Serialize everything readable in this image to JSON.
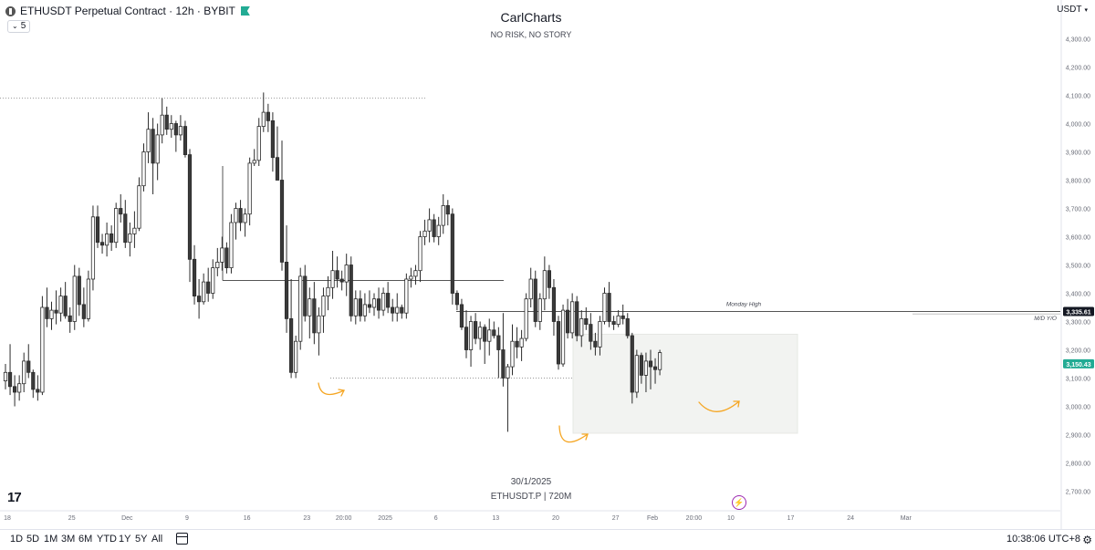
{
  "header": {
    "symbol_title": "ETHUSDT Perpetual Contract · 12h · BYBIT",
    "indicator_count": "5",
    "currency": "USDT"
  },
  "watermark": {
    "brand": "CarlCharts",
    "tagline": "NO RISK, NO STORY",
    "date": "30/1/2025",
    "symbol_line": "ETHUSDT.P  |  720M"
  },
  "bottom_bar": {
    "timeframes": [
      "1D",
      "5D",
      "1M",
      "3M",
      "6M",
      "YTD",
      "1Y",
      "5Y",
      "All"
    ],
    "clock": "10:38:06 UTC+8"
  },
  "colors": {
    "candle": "#2b2b2b",
    "bull_fill": "#ffffff",
    "bear_fill": "#3a3a3a",
    "level_line": "#555555",
    "zone_fill": "#f2f3f1",
    "arrow": "#f5a623",
    "price_badge": "#22ab94",
    "level_badge": "#131722"
  },
  "chart_data": {
    "type": "candlestick",
    "timeframe": "12h",
    "y_axis": {
      "range": [
        2650,
        4400
      ],
      "tick_labels": [
        "4,300.00",
        "4,200.00",
        "4,100.00",
        "4,000.00",
        "3,900.00",
        "3,800.00",
        "3,700.00",
        "3,600.00",
        "3,500.00",
        "3,400.00",
        "3,300.00",
        "3,200.00",
        "3,100.00",
        "3,000.00",
        "2,900.00",
        "2,800.00",
        "2,700.00"
      ],
      "tick_values": [
        4300,
        4200,
        4100,
        4000,
        3900,
        3800,
        3700,
        3600,
        3500,
        3400,
        3300,
        3200,
        3100,
        3000,
        2900,
        2800,
        2700
      ]
    },
    "x_axis": {
      "tick_labels": [
        "18",
        "25",
        "Dec",
        "9",
        "16",
        "23",
        "20:00",
        "2025",
        "6",
        "13",
        "20",
        "27",
        "Feb",
        "20:00",
        "10",
        "17",
        "24",
        "Mar"
      ],
      "tick_bar_index": [
        0,
        14,
        26,
        39,
        52,
        65,
        73,
        82,
        93,
        106,
        119,
        132,
        140,
        149,
        157,
        170,
        183,
        195
      ]
    },
    "candles": [
      [
        3090,
        3150,
        3060,
        3120
      ],
      [
        3120,
        3220,
        3040,
        3070
      ],
      [
        3070,
        3110,
        3000,
        3050
      ],
      [
        3050,
        3110,
        3020,
        3080
      ],
      [
        3080,
        3190,
        3050,
        3160
      ],
      [
        3160,
        3220,
        3100,
        3120
      ],
      [
        3120,
        3130,
        3030,
        3060
      ],
      [
        3060,
        3110,
        3020,
        3050
      ],
      [
        3050,
        3390,
        3040,
        3350
      ],
      [
        3350,
        3420,
        3280,
        3310
      ],
      [
        3310,
        3370,
        3270,
        3340
      ],
      [
        3340,
        3410,
        3290,
        3330
      ],
      [
        3330,
        3420,
        3300,
        3390
      ],
      [
        3390,
        3440,
        3310,
        3320
      ],
      [
        3320,
        3350,
        3260,
        3300
      ],
      [
        3300,
        3500,
        3270,
        3460
      ],
      [
        3460,
        3490,
        3320,
        3360
      ],
      [
        3360,
        3420,
        3280,
        3310
      ],
      [
        3310,
        3480,
        3300,
        3450
      ],
      [
        3450,
        3710,
        3410,
        3670
      ],
      [
        3670,
        3710,
        3560,
        3580
      ],
      [
        3580,
        3610,
        3540,
        3570
      ],
      [
        3570,
        3650,
        3530,
        3610
      ],
      [
        3610,
        3640,
        3550,
        3580
      ],
      [
        3580,
        3720,
        3560,
        3700
      ],
      [
        3700,
        3750,
        3650,
        3680
      ],
      [
        3680,
        3730,
        3560,
        3580
      ],
      [
        3580,
        3650,
        3530,
        3610
      ],
      [
        3610,
        3690,
        3560,
        3630
      ],
      [
        3630,
        3810,
        3620,
        3780
      ],
      [
        3780,
        3930,
        3760,
        3900
      ],
      [
        3900,
        4040,
        3860,
        3980
      ],
      [
        3980,
        4020,
        3750,
        3860
      ],
      [
        3860,
        4000,
        3800,
        3960
      ],
      [
        3960,
        4090,
        3930,
        4030
      ],
      [
        4030,
        4060,
        3960,
        3980
      ],
      [
        3980,
        4030,
        3950,
        4000
      ],
      [
        4000,
        4010,
        3900,
        3960
      ],
      [
        3960,
        4030,
        3940,
        3990
      ],
      [
        3990,
        4010,
        3880,
        3890
      ],
      [
        3890,
        3910,
        3440,
        3520
      ],
      [
        3520,
        3570,
        3360,
        3390
      ],
      [
        3390,
        3450,
        3310,
        3370
      ],
      [
        3370,
        3470,
        3360,
        3440
      ],
      [
        3440,
        3490,
        3370,
        3400
      ],
      [
        3400,
        3520,
        3380,
        3490
      ],
      [
        3490,
        3560,
        3460,
        3510
      ],
      [
        3510,
        3600,
        3480,
        3560
      ],
      [
        3560,
        3580,
        3470,
        3490
      ],
      [
        3490,
        3680,
        3470,
        3650
      ],
      [
        3650,
        3720,
        3590,
        3700
      ],
      [
        3700,
        3730,
        3620,
        3650
      ],
      [
        3650,
        3700,
        3600,
        3680
      ],
      [
        3680,
        3880,
        3640,
        3860
      ],
      [
        3860,
        3910,
        3850,
        3870
      ],
      [
        3870,
        4020,
        3850,
        3990
      ],
      [
        3990,
        4110,
        3970,
        4040
      ],
      [
        4040,
        4070,
        3970,
        4010
      ],
      [
        4010,
        4040,
        3830,
        3880
      ],
      [
        3880,
        3990,
        3800,
        3800
      ],
      [
        3800,
        3940,
        3480,
        3510
      ],
      [
        3510,
        3640,
        3260,
        3310
      ],
      [
        3310,
        3450,
        3100,
        3120
      ],
      [
        3120,
        3250,
        3100,
        3230
      ],
      [
        3230,
        3490,
        3200,
        3460
      ],
      [
        3460,
        3500,
        3300,
        3320
      ],
      [
        3320,
        3420,
        3240,
        3380
      ],
      [
        3380,
        3440,
        3220,
        3260
      ],
      [
        3260,
        3350,
        3180,
        3320
      ],
      [
        3320,
        3420,
        3260,
        3390
      ],
      [
        3390,
        3460,
        3340,
        3420
      ],
      [
        3420,
        3550,
        3380,
        3480
      ],
      [
        3480,
        3530,
        3420,
        3450
      ],
      [
        3450,
        3480,
        3410,
        3440
      ],
      [
        3440,
        3540,
        3390,
        3500
      ],
      [
        3500,
        3530,
        3300,
        3320
      ],
      [
        3320,
        3410,
        3290,
        3380
      ],
      [
        3380,
        3410,
        3300,
        3320
      ],
      [
        3320,
        3400,
        3300,
        3360
      ],
      [
        3360,
        3410,
        3330,
        3350
      ],
      [
        3350,
        3400,
        3320,
        3380
      ],
      [
        3380,
        3420,
        3310,
        3340
      ],
      [
        3340,
        3420,
        3320,
        3400
      ],
      [
        3400,
        3440,
        3330,
        3350
      ],
      [
        3350,
        3380,
        3300,
        3330
      ],
      [
        3330,
        3400,
        3300,
        3350
      ],
      [
        3350,
        3360,
        3310,
        3330
      ],
      [
        3330,
        3470,
        3310,
        3450
      ],
      [
        3450,
        3490,
        3420,
        3460
      ],
      [
        3460,
        3500,
        3430,
        3480
      ],
      [
        3480,
        3620,
        3440,
        3600
      ],
      [
        3600,
        3660,
        3570,
        3620
      ],
      [
        3620,
        3700,
        3580,
        3660
      ],
      [
        3660,
        3680,
        3580,
        3600
      ],
      [
        3600,
        3670,
        3570,
        3640
      ],
      [
        3640,
        3750,
        3610,
        3710
      ],
      [
        3710,
        3730,
        3640,
        3680
      ],
      [
        3680,
        3700,
        3360,
        3400
      ],
      [
        3400,
        3410,
        3340,
        3360
      ],
      [
        3360,
        3380,
        3270,
        3280
      ],
      [
        3280,
        3340,
        3170,
        3200
      ],
      [
        3200,
        3320,
        3140,
        3300
      ],
      [
        3300,
        3330,
        3220,
        3240
      ],
      [
        3240,
        3300,
        3200,
        3280
      ],
      [
        3280,
        3290,
        3150,
        3230
      ],
      [
        3230,
        3310,
        3180,
        3270
      ],
      [
        3270,
        3300,
        3240,
        3250
      ],
      [
        3250,
        3280,
        3100,
        3200
      ],
      [
        3200,
        3330,
        3070,
        3100
      ],
      [
        3100,
        3150,
        2910,
        3140
      ],
      [
        3140,
        3290,
        3110,
        3230
      ],
      [
        3230,
        3280,
        3170,
        3210
      ],
      [
        3210,
        3270,
        3160,
        3240
      ],
      [
        3240,
        3400,
        3230,
        3380
      ],
      [
        3380,
        3490,
        3350,
        3450
      ],
      [
        3450,
        3480,
        3280,
        3300
      ],
      [
        3300,
        3400,
        3270,
        3380
      ],
      [
        3380,
        3530,
        3340,
        3480
      ],
      [
        3480,
        3500,
        3380,
        3420
      ],
      [
        3420,
        3450,
        3250,
        3300
      ],
      [
        3300,
        3320,
        3130,
        3150
      ],
      [
        3150,
        3360,
        3140,
        3340
      ],
      [
        3340,
        3380,
        3240,
        3260
      ],
      [
        3260,
        3400,
        3240,
        3370
      ],
      [
        3370,
        3390,
        3230,
        3250
      ],
      [
        3250,
        3340,
        3210,
        3310
      ],
      [
        3310,
        3350,
        3270,
        3290
      ],
      [
        3290,
        3330,
        3200,
        3230
      ],
      [
        3230,
        3260,
        3180,
        3210
      ],
      [
        3210,
        3320,
        3180,
        3300
      ],
      [
        3300,
        3420,
        3290,
        3400
      ],
      [
        3400,
        3440,
        3280,
        3300
      ],
      [
        3300,
        3320,
        3270,
        3290
      ],
      [
        3290,
        3340,
        3280,
        3320
      ],
      [
        3320,
        3360,
        3290,
        3310
      ],
      [
        3310,
        3330,
        3240,
        3250
      ],
      [
        3250,
        3260,
        3010,
        3050
      ],
      [
        3050,
        3200,
        3030,
        3180
      ],
      [
        3180,
        3190,
        3080,
        3110
      ],
      [
        3110,
        3190,
        3050,
        3160
      ],
      [
        3160,
        3200,
        3060,
        3140
      ],
      [
        3140,
        3170,
        3080,
        3130
      ],
      [
        3130,
        3200,
        3110,
        3190
      ]
    ],
    "levels": [
      {
        "label": "Monday High",
        "value": 3335.61,
        "badge": "3,335.61"
      },
      {
        "label": "M/D Y/O",
        "value": 3327
      }
    ],
    "current_price": {
      "value": 3150.43,
      "badge": "3,150.43"
    },
    "annotations": {
      "swing_high_line": 4090,
      "swing_low_line": 3100,
      "range_high_line": 3445,
      "zone": [
        2905,
        3255
      ]
    }
  }
}
